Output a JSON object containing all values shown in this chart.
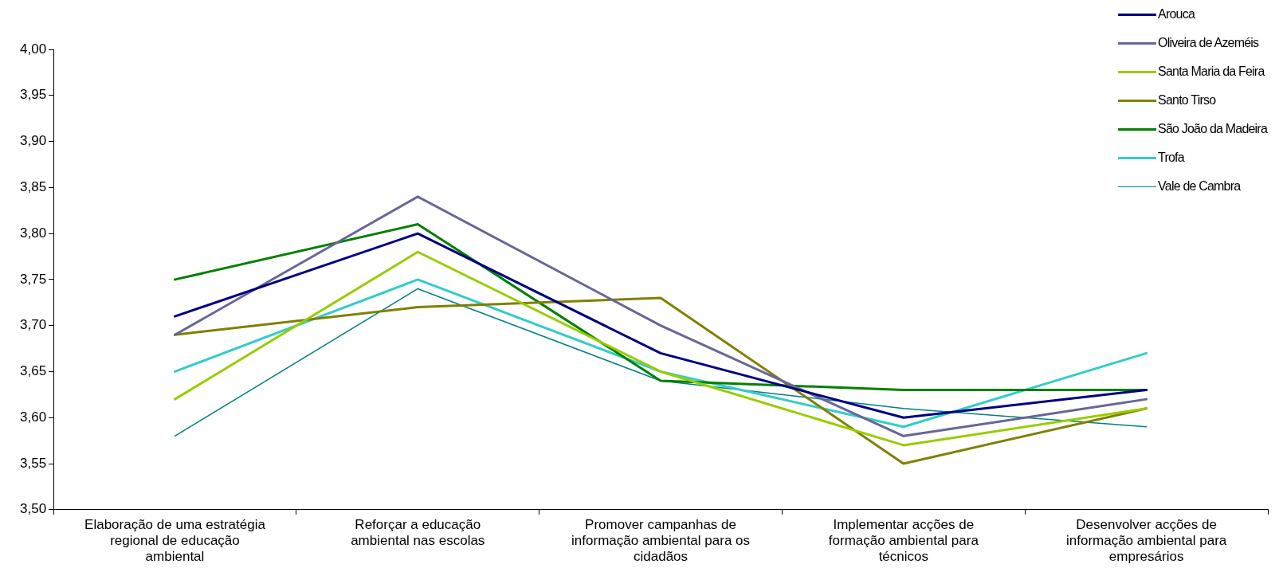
{
  "chart_data": {
    "type": "line",
    "categories": [
      "Elaboração de uma estratégia regional de educação ambiental",
      "Reforçar a educação ambiental nas escolas",
      "Promover campanhas de informação ambiental para os cidadãos",
      "Implementar acções de formação ambiental para técnicos",
      "Desenvolver acções de informação ambiental para empresários"
    ],
    "series": [
      {
        "name": "Arouca",
        "color": "#000080",
        "values": [
          3.71,
          3.8,
          3.67,
          3.6,
          3.63
        ]
      },
      {
        "name": "Oliveira de Azeméis",
        "color": "#666699",
        "values": [
          3.69,
          3.84,
          3.7,
          3.58,
          3.62
        ]
      },
      {
        "name": "Santa Maria da Feira",
        "color": "#99cc00",
        "values": [
          3.62,
          3.78,
          3.65,
          3.57,
          3.61
        ]
      },
      {
        "name": "Santo Tirso",
        "color": "#808000",
        "values": [
          3.69,
          3.72,
          3.73,
          3.55,
          3.61
        ]
      },
      {
        "name": "São João da Madeira",
        "color": "#008000",
        "values": [
          3.75,
          3.81,
          3.64,
          3.63,
          3.63
        ]
      },
      {
        "name": "Trofa",
        "color": "#33cccc",
        "values": [
          3.65,
          3.75,
          3.65,
          3.59,
          3.67
        ]
      },
      {
        "name": "Vale de Cambra",
        "color": "#008080",
        "values": [
          3.58,
          3.74,
          3.64,
          3.61,
          3.59
        ]
      }
    ],
    "ylim": [
      3.5,
      4.0
    ],
    "yticks": [
      {
        "value": 3.5,
        "label": "3,50"
      },
      {
        "value": 3.55,
        "label": "3,55"
      },
      {
        "value": 3.6,
        "label": "3,60"
      },
      {
        "value": 3.65,
        "label": "3,65"
      },
      {
        "value": 3.7,
        "label": "3,70"
      },
      {
        "value": 3.75,
        "label": "3,75"
      },
      {
        "value": 3.8,
        "label": "3,80"
      },
      {
        "value": 3.85,
        "label": "3,85"
      },
      {
        "value": 3.9,
        "label": "3,90"
      },
      {
        "value": 3.95,
        "label": "3,95"
      },
      {
        "value": 4.0,
        "label": "4,00"
      }
    ],
    "grid": false,
    "legend": "top right",
    "marker": "none",
    "line_style": "solid"
  }
}
